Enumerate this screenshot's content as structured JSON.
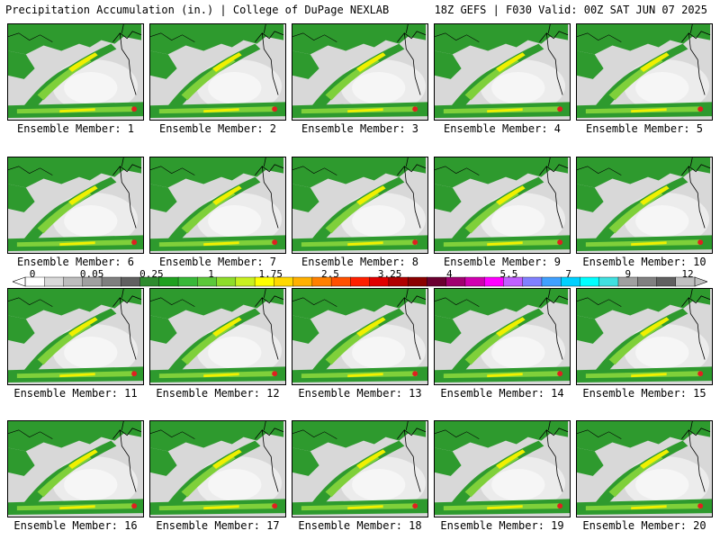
{
  "header": {
    "left": "Precipitation Accumulation (in.) | College of DuPage NEXLAB",
    "right": "18Z GEFS | F030 Valid: 00Z SAT JUN 07 2025"
  },
  "members": [
    "Ensemble Member: 1",
    "Ensemble Member: 2",
    "Ensemble Member: 3",
    "Ensemble Member: 4",
    "Ensemble Member: 5",
    "Ensemble Member: 6",
    "Ensemble Member: 7",
    "Ensemble Member: 8",
    "Ensemble Member: 9",
    "Ensemble Member: 10",
    "Ensemble Member: 11",
    "Ensemble Member: 12",
    "Ensemble Member: 13",
    "Ensemble Member: 14",
    "Ensemble Member: 15",
    "Ensemble Member: 16",
    "Ensemble Member: 17",
    "Ensemble Member: 18",
    "Ensemble Member: 19",
    "Ensemble Member: 20"
  ],
  "scale": {
    "labels": [
      "0",
      "0.05",
      "0.25",
      "1",
      "1.75",
      "2.5",
      "3.25",
      "4",
      "5.5",
      "7",
      "9",
      "12"
    ],
    "colors": [
      "#ffffff",
      "#d9d9d9",
      "#bdbdbd",
      "#a0a0a0",
      "#7f7f7f",
      "#606060",
      "#2e8b2e",
      "#1fa01f",
      "#38b838",
      "#5cc83a",
      "#8edc2a",
      "#c8f020",
      "#ffff00",
      "#ffd800",
      "#ffb000",
      "#ff8000",
      "#ff5000",
      "#ff2000",
      "#e00000",
      "#b00000",
      "#8a0000",
      "#6a0030",
      "#a00070",
      "#d000b0",
      "#ff00ff",
      "#c060ff",
      "#8080ff",
      "#40a0ff",
      "#00d0ff",
      "#00ffff",
      "#40e0e0",
      "#a0a0a0",
      "#808080",
      "#606060",
      "#c0c0c0"
    ]
  },
  "colors": {
    "ocean_gray": "#d8d8d8",
    "land_green": "#2e9a2e",
    "light_green": "#7fd03a",
    "yellow": "#f0f000",
    "red": "#e02020",
    "coast": "#000000"
  }
}
